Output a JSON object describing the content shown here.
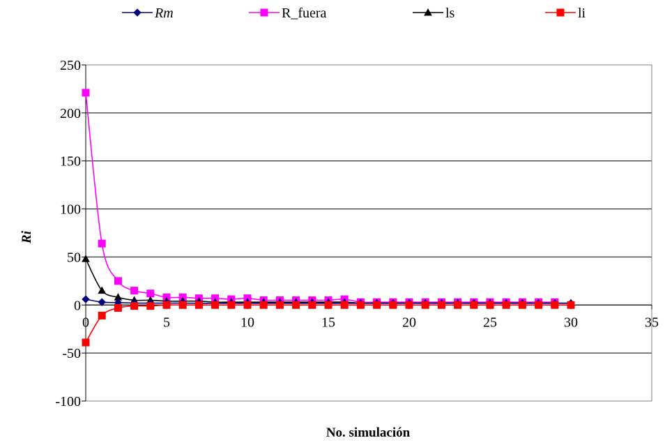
{
  "chart_data": {
    "type": "line",
    "title": "",
    "xlabel": "No. simulación",
    "ylabel": "Ri",
    "xlim": [
      0,
      35
    ],
    "ylim": [
      -100,
      250
    ],
    "xticks": [
      0,
      5,
      10,
      15,
      20,
      25,
      30,
      35
    ],
    "yticks": [
      -100,
      -50,
      0,
      50,
      100,
      150,
      200,
      250
    ],
    "grid": "horizontal",
    "legend_position": "top",
    "series": [
      {
        "name": "Rm",
        "color": "#00007f",
        "marker": "diamond",
        "italic": true,
        "x": [
          0,
          1,
          2,
          3,
          4,
          5,
          6,
          7,
          8,
          9,
          10,
          11,
          12,
          13,
          14,
          15,
          16,
          17,
          18,
          19,
          20,
          21,
          22,
          23,
          24,
          25,
          26,
          27,
          28,
          29,
          30
        ],
        "y": [
          6,
          3,
          2.5,
          2,
          2,
          2,
          2,
          1.8,
          1.8,
          1.8,
          1.8,
          1.8,
          1.8,
          1.8,
          1.8,
          1.8,
          1.8,
          1.8,
          1.8,
          1.8,
          1.8,
          1.8,
          1.8,
          1.8,
          1.8,
          1.8,
          1.8,
          1.8,
          1.8,
          1.8,
          1.8
        ]
      },
      {
        "name": "R_fuera",
        "color": "#ff00ff",
        "marker": "square",
        "italic": false,
        "x": [
          0,
          1,
          2,
          3,
          4,
          5,
          6,
          7,
          8,
          9,
          10,
          11,
          12,
          13,
          14,
          15,
          16,
          17,
          18,
          19,
          20,
          21,
          22,
          23,
          24,
          25,
          26,
          27,
          28,
          29
        ],
        "y": [
          221,
          64,
          25,
          15,
          12,
          8,
          8,
          7,
          7,
          6,
          7,
          5,
          5,
          5,
          5,
          5,
          6,
          3,
          3,
          3,
          3,
          3,
          3,
          3,
          3,
          3,
          3,
          3,
          3,
          3
        ]
      },
      {
        "name": "ls",
        "color": "#000000",
        "marker": "triangle",
        "italic": false,
        "x": [
          0,
          1,
          2,
          3,
          4,
          5,
          6,
          7,
          8,
          9,
          10,
          11,
          12,
          13,
          14,
          15,
          16,
          17,
          18,
          19,
          20,
          21,
          22,
          23,
          24,
          25,
          26,
          27,
          28,
          29,
          30
        ],
        "y": [
          48,
          15,
          8,
          5,
          5,
          4,
          4,
          4,
          3,
          3,
          3,
          3,
          3,
          3,
          3,
          3,
          3,
          2,
          2,
          2,
          2,
          2,
          2,
          2,
          2,
          2,
          2,
          2,
          2,
          2,
          2
        ]
      },
      {
        "name": "li",
        "color": "#ff0000",
        "marker": "square",
        "italic": false,
        "x": [
          0,
          1,
          2,
          3,
          4,
          5,
          6,
          7,
          8,
          9,
          10,
          11,
          12,
          13,
          14,
          15,
          16,
          17,
          18,
          19,
          20,
          21,
          22,
          23,
          24,
          25,
          26,
          27,
          28,
          29,
          30
        ],
        "y": [
          -39,
          -11,
          -3,
          -1,
          -1,
          0,
          0,
          0,
          0,
          0,
          0,
          0,
          0,
          0,
          0,
          0,
          0,
          0,
          0,
          0,
          0,
          0,
          0,
          0,
          0,
          0,
          0,
          0,
          0,
          0,
          0
        ]
      }
    ]
  }
}
